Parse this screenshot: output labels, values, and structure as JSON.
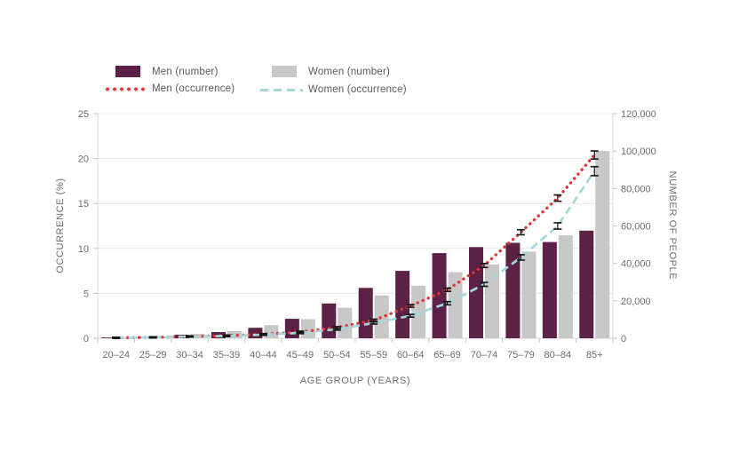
{
  "legend": {
    "items": [
      {
        "label": "Men (number)"
      },
      {
        "label": "Men (occurrence)"
      },
      {
        "label": "Women (number)"
      },
      {
        "label": "Women (occurrence)"
      }
    ]
  },
  "axes": {
    "left_label": "OCCURRENCE (%)",
    "right_label": "NUMBER OF PEOPLE",
    "x_label": "AGE GROUP (YEARS)"
  },
  "colors": {
    "grid": "#e7e7e8",
    "axis_line": "#d7d7d9",
    "tick_mark": "#c6c6c8",
    "tick_text": "#6d6e71",
    "error_bar": "#151515",
    "background": "#ffffff"
  },
  "chart_data": {
    "type": "bar",
    "subtype": "combo bar + line, dual axis",
    "categories": [
      "20–24",
      "25–29",
      "30–34",
      "35–39",
      "40–44",
      "45–49",
      "50–54",
      "55–59",
      "60–64",
      "65–69",
      "70–74",
      "75–79",
      "80–84",
      "85+"
    ],
    "series": [
      {
        "name": "Men (number)",
        "type": "bar",
        "axis": "right",
        "color": "#5c2147",
        "values": [
          400,
          800,
          1900,
          3300,
          5600,
          10400,
          18600,
          26900,
          36000,
          45500,
          48700,
          51000,
          51400,
          57500
        ]
      },
      {
        "name": "Women (number)",
        "type": "bar",
        "axis": "right",
        "color": "#c7c7c8",
        "values": [
          400,
          900,
          2300,
          3800,
          7000,
          10200,
          16300,
          22900,
          28100,
          35300,
          39500,
          46300,
          55000,
          100000
        ]
      },
      {
        "name": "Men (occurrence)",
        "type": "line",
        "style": "dotted",
        "axis": "left",
        "color": "#e23434",
        "values": [
          0.05,
          0.1,
          0.2,
          0.3,
          0.45,
          0.7,
          1.2,
          2.0,
          3.6,
          5.4,
          8.1,
          11.8,
          15.6,
          20.4
        ],
        "error": [
          0.05,
          0.05,
          0.06,
          0.07,
          0.08,
          0.09,
          0.1,
          0.12,
          0.15,
          0.18,
          0.22,
          0.28,
          0.35,
          0.45
        ]
      },
      {
        "name": "Women (occurrence)",
        "type": "line",
        "style": "dashed",
        "axis": "left",
        "color": "#a3d7dc",
        "values": [
          0.05,
          0.1,
          0.2,
          0.25,
          0.4,
          0.6,
          1.0,
          1.7,
          2.5,
          3.9,
          6.0,
          9.0,
          12.5,
          18.6
        ],
        "error": [
          0.05,
          0.05,
          0.06,
          0.07,
          0.08,
          0.09,
          0.1,
          0.12,
          0.15,
          0.18,
          0.22,
          0.3,
          0.35,
          0.5
        ]
      }
    ],
    "left_axis": {
      "label": "OCCURRENCE (%)",
      "min": 0,
      "max": 25,
      "ticks": [
        0,
        5,
        10,
        15,
        20,
        25
      ]
    },
    "right_axis": {
      "label": "NUMBER OF PEOPLE",
      "min": 0,
      "max": 120000,
      "tick_labels": [
        "0",
        "20,000",
        "40,000",
        "60,000",
        "80,000",
        "100,000",
        "120,000"
      ]
    },
    "x_axis": {
      "label": "AGE GROUP (YEARS)"
    },
    "grid": "horizontal, at left-axis ticks",
    "legend_position": "top",
    "error_bars": true
  }
}
